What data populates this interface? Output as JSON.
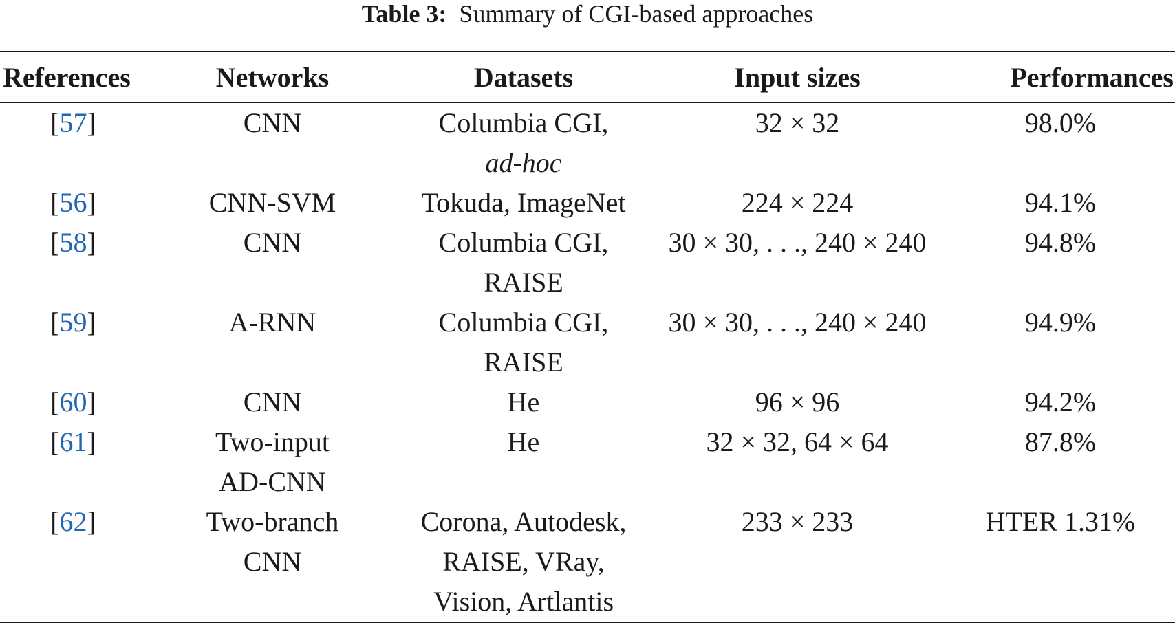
{
  "caption": {
    "label": "Table 3:",
    "text": "Summary of CGI-based approaches"
  },
  "table": {
    "headers": [
      "References",
      "Networks",
      "Datasets",
      "Input sizes",
      "Performances"
    ],
    "rows": [
      {
        "ref": "57",
        "network": [
          "CNN"
        ],
        "datasets": [
          "Columbia CGI,"
        ],
        "datasets_italic": "ad-hoc",
        "input_size": "32 × 32",
        "performance": "98.0%"
      },
      {
        "ref": "56",
        "network": [
          "CNN-SVM"
        ],
        "datasets": [
          "Tokuda, ImageNet"
        ],
        "input_size": "224 × 224",
        "performance": "94.1%"
      },
      {
        "ref": "58",
        "network": [
          "CNN"
        ],
        "datasets": [
          "Columbia CGI,",
          "RAISE"
        ],
        "input_size": "30 × 30, . . ., 240 × 240",
        "performance": "94.8%"
      },
      {
        "ref": "59",
        "network": [
          "A-RNN"
        ],
        "datasets": [
          "Columbia CGI,",
          "RAISE"
        ],
        "input_size": "30 × 30, . . ., 240 × 240",
        "performance": "94.9%"
      },
      {
        "ref": "60",
        "network": [
          "CNN"
        ],
        "datasets": [
          "He"
        ],
        "input_size": "96 × 96",
        "performance": "94.2%"
      },
      {
        "ref": "61",
        "network": [
          "Two-input",
          "AD-CNN"
        ],
        "datasets": [
          "He"
        ],
        "input_size": "32 × 32, 64 × 64",
        "performance": "87.8%"
      },
      {
        "ref": "62",
        "network": [
          "Two-branch",
          "CNN"
        ],
        "datasets": [
          "Corona, Autodesk,",
          "RAISE, VRay,",
          "Vision, Artlantis"
        ],
        "input_size": "233 × 233",
        "performance": "HTER 1.31%"
      }
    ]
  }
}
